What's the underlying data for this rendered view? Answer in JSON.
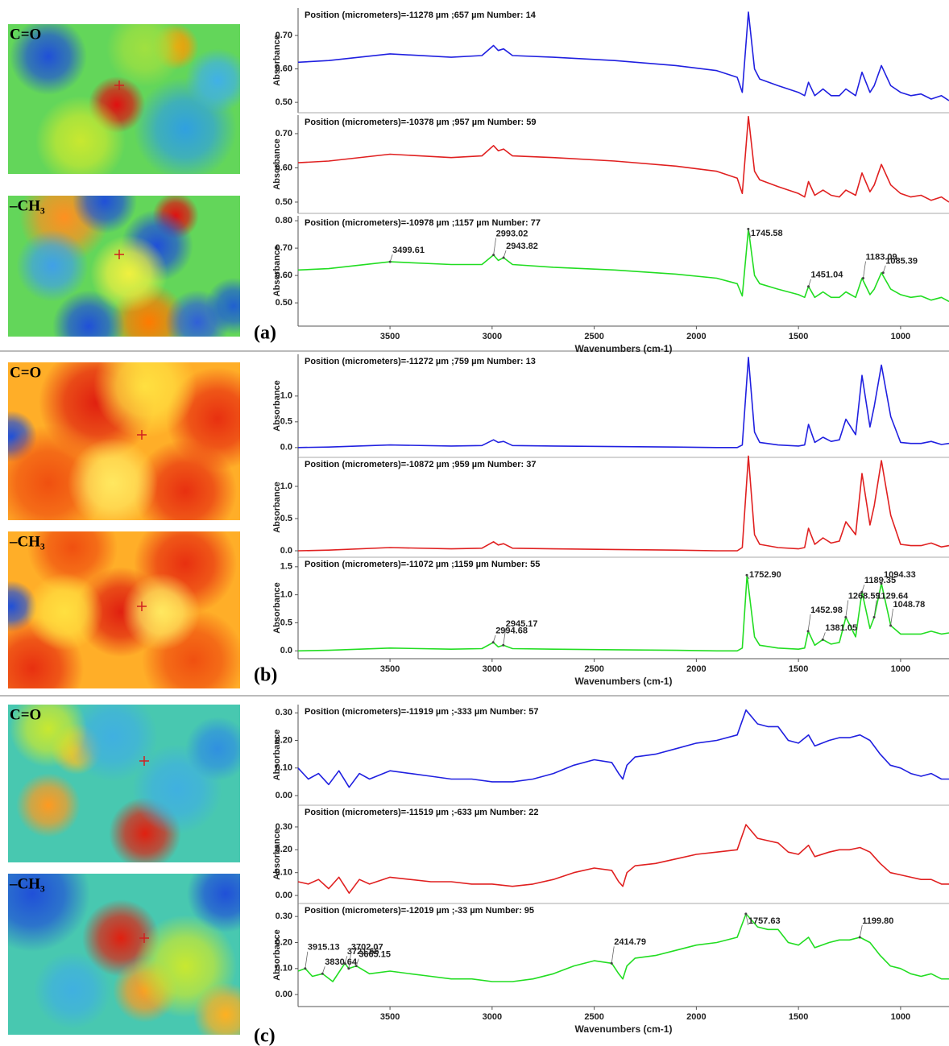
{
  "panels": [
    {
      "label": "(a)",
      "maps": [
        "C=O",
        "–CH₃"
      ]
    },
    {
      "label": "(b)",
      "maps": [
        "C=O",
        "–CH₃"
      ]
    },
    {
      "label": "(c)",
      "maps": [
        "C=O",
        "–CH₃"
      ]
    }
  ],
  "chart_data": [
    {
      "type": "line",
      "title": "Position (micrometers)=-11278 µm ;657 µm  Number: 14",
      "y_label": "Absorbance",
      "color": "#2020e0",
      "x": [
        3950,
        3800,
        3500,
        3200,
        3050,
        2993,
        2970,
        2944,
        2900,
        2700,
        2400,
        2100,
        1900,
        1800,
        1775,
        1745,
        1715,
        1690,
        1600,
        1500,
        1470,
        1451,
        1420,
        1380,
        1340,
        1300,
        1268,
        1220,
        1189,
        1150,
        1129,
        1094,
        1048,
        1000,
        950,
        900,
        850,
        800,
        763
      ],
      "values": [
        0.62,
        0.625,
        0.645,
        0.635,
        0.64,
        0.67,
        0.655,
        0.66,
        0.64,
        0.635,
        0.625,
        0.61,
        0.595,
        0.575,
        0.53,
        0.77,
        0.6,
        0.57,
        0.55,
        0.53,
        0.52,
        0.56,
        0.52,
        0.54,
        0.52,
        0.52,
        0.54,
        0.52,
        0.59,
        0.53,
        0.55,
        0.61,
        0.55,
        0.53,
        0.52,
        0.525,
        0.51,
        0.52,
        0.505
      ],
      "xlim": [
        3950,
        763
      ],
      "ylim": [
        0.469,
        0.782
      ],
      "yticks": [
        {
          "value": 0.5,
          "label": "0.50"
        },
        {
          "value": 0.6,
          "label": "0.60"
        },
        {
          "value": 0.7,
          "label": "0.70"
        }
      ]
    },
    {
      "type": "line",
      "title": "Position (micrometers)=-10378 µm ;957 µm  Number: 59",
      "y_label": "Absorbance",
      "color": "#e02020",
      "x": [
        3950,
        3800,
        3500,
        3200,
        3050,
        2993,
        2970,
        2944,
        2900,
        2700,
        2400,
        2100,
        1900,
        1800,
        1775,
        1745,
        1715,
        1690,
        1600,
        1500,
        1470,
        1451,
        1420,
        1380,
        1340,
        1300,
        1268,
        1220,
        1189,
        1150,
        1129,
        1094,
        1048,
        1000,
        950,
        900,
        850,
        800,
        763
      ],
      "values": [
        0.615,
        0.62,
        0.64,
        0.63,
        0.635,
        0.665,
        0.65,
        0.655,
        0.635,
        0.63,
        0.62,
        0.605,
        0.59,
        0.57,
        0.525,
        0.75,
        0.59,
        0.565,
        0.545,
        0.525,
        0.515,
        0.56,
        0.52,
        0.535,
        0.52,
        0.515,
        0.535,
        0.52,
        0.585,
        0.53,
        0.55,
        0.61,
        0.55,
        0.525,
        0.515,
        0.52,
        0.505,
        0.515,
        0.5
      ],
      "xlim": [
        3950,
        763
      ],
      "ylim": [
        0.467,
        0.754
      ],
      "yticks": [
        {
          "value": 0.5,
          "label": "0.50"
        },
        {
          "value": 0.6,
          "label": "0.60"
        },
        {
          "value": 0.7,
          "label": "0.70"
        }
      ]
    },
    {
      "type": "line",
      "title": "Position (micrometers)=-10978 µm ;1157 µm  Number: 77",
      "y_label": "Absorbance",
      "color": "#22dd22",
      "x": [
        3950,
        3800,
        3500,
        3200,
        3050,
        2993,
        2970,
        2944,
        2900,
        2700,
        2400,
        2100,
        1900,
        1800,
        1775,
        1745,
        1715,
        1690,
        1600,
        1500,
        1470,
        1451,
        1420,
        1380,
        1340,
        1300,
        1268,
        1220,
        1189,
        1150,
        1129,
        1094,
        1048,
        1000,
        950,
        900,
        850,
        800,
        763
      ],
      "values": [
        0.62,
        0.625,
        0.65,
        0.64,
        0.64,
        0.675,
        0.655,
        0.665,
        0.64,
        0.63,
        0.62,
        0.605,
        0.59,
        0.57,
        0.525,
        0.77,
        0.6,
        0.57,
        0.55,
        0.53,
        0.52,
        0.56,
        0.52,
        0.54,
        0.52,
        0.52,
        0.54,
        0.52,
        0.59,
        0.53,
        0.55,
        0.61,
        0.55,
        0.53,
        0.52,
        0.525,
        0.51,
        0.52,
        0.505
      ],
      "xlim": [
        3950,
        763
      ],
      "ylim": [
        0.415,
        0.818
      ],
      "yticks": [
        {
          "value": 0.5,
          "label": "0.50"
        },
        {
          "value": 0.6,
          "label": "0.60"
        },
        {
          "value": 0.7,
          "label": "0.70"
        },
        {
          "value": 0.8,
          "label": "0.80"
        }
      ],
      "xticks": [
        3500,
        3000,
        2500,
        2000,
        1500,
        1000
      ],
      "x_label": "Wavenumbers (cm-1)",
      "annotations": [
        {
          "label": "3499.61",
          "x": 3499.61,
          "y": 0.65
        },
        {
          "label": "2993.02",
          "x": 2993.02,
          "y": 0.675
        },
        {
          "label": "2943.82",
          "x": 2943.82,
          "y": 0.665
        },
        {
          "label": "1745.58",
          "x": 1745.58,
          "y": 0.77
        },
        {
          "label": "1451.04",
          "x": 1451.04,
          "y": 0.56
        },
        {
          "label": "1183.09",
          "x": 1183.09,
          "y": 0.59
        },
        {
          "label": "1085.39",
          "x": 1085.39,
          "y": 0.61
        }
      ]
    },
    {
      "type": "line",
      "title": "Position (micrometers)=-11272 µm ;759 µm  Number: 13",
      "y_label": "Absorbance",
      "color": "#2020e0",
      "x": [
        3950,
        3800,
        3500,
        3200,
        3050,
        2993,
        2970,
        2944,
        2900,
        2700,
        2400,
        2100,
        1900,
        1800,
        1775,
        1745,
        1715,
        1690,
        1600,
        1500,
        1470,
        1451,
        1420,
        1380,
        1340,
        1300,
        1268,
        1220,
        1189,
        1150,
        1129,
        1094,
        1048,
        1000,
        950,
        900,
        850,
        800,
        763
      ],
      "values": [
        0.0,
        0.01,
        0.05,
        0.03,
        0.04,
        0.15,
        0.1,
        0.12,
        0.04,
        0.03,
        0.02,
        0.01,
        0.0,
        0.0,
        0.05,
        1.75,
        0.3,
        0.1,
        0.05,
        0.03,
        0.05,
        0.45,
        0.1,
        0.2,
        0.12,
        0.15,
        0.55,
        0.25,
        1.4,
        0.4,
        0.8,
        1.6,
        0.6,
        0.1,
        0.08,
        0.08,
        0.12,
        0.06,
        0.08
      ],
      "xlim": [
        3950,
        763
      ],
      "ylim": [
        -0.19,
        1.81
      ],
      "yticks": [
        {
          "value": 0,
          "label": "0.0"
        },
        {
          "value": 0.5,
          "label": "0.5"
        },
        {
          "value": 1,
          "label": "1.0"
        }
      ]
    },
    {
      "type": "line",
      "title": "Position (micrometers)=-10872 µm ;959 µm  Number: 37",
      "y_label": "Absorbance",
      "color": "#e02020",
      "x": [
        3950,
        3800,
        3500,
        3200,
        3050,
        2993,
        2970,
        2944,
        2900,
        2700,
        2400,
        2100,
        1900,
        1800,
        1775,
        1745,
        1715,
        1690,
        1600,
        1500,
        1470,
        1451,
        1420,
        1380,
        1340,
        1300,
        1268,
        1220,
        1189,
        1150,
        1129,
        1094,
        1048,
        1000,
        950,
        900,
        850,
        800,
        763
      ],
      "values": [
        0.0,
        0.01,
        0.05,
        0.03,
        0.04,
        0.14,
        0.09,
        0.11,
        0.04,
        0.03,
        0.02,
        0.01,
        0.0,
        0.0,
        0.05,
        1.47,
        0.25,
        0.1,
        0.05,
        0.03,
        0.05,
        0.35,
        0.1,
        0.2,
        0.12,
        0.15,
        0.45,
        0.25,
        1.2,
        0.4,
        0.7,
        1.4,
        0.55,
        0.1,
        0.08,
        0.08,
        0.12,
        0.06,
        0.08
      ],
      "xlim": [
        3950,
        763
      ],
      "ylim": [
        -0.1,
        1.45
      ],
      "yticks": [
        {
          "value": 0,
          "label": "0.0"
        },
        {
          "value": 0.5,
          "label": "0.5"
        },
        {
          "value": 1,
          "label": "1.0"
        }
      ]
    },
    {
      "type": "line",
      "title": "Position (micrometers)=-11072 µm ;1159 µm  Number: 55",
      "y_label": "Absorbance",
      "color": "#22dd22",
      "x": [
        3950,
        3800,
        3500,
        3200,
        3050,
        2994,
        2970,
        2945,
        2900,
        2700,
        2400,
        2100,
        1900,
        1800,
        1775,
        1752,
        1715,
        1690,
        1600,
        1500,
        1470,
        1452,
        1420,
        1381,
        1340,
        1300,
        1268,
        1220,
        1189,
        1150,
        1129,
        1094,
        1048,
        1000,
        950,
        900,
        850,
        800,
        763
      ],
      "values": [
        0.0,
        0.01,
        0.05,
        0.03,
        0.04,
        0.15,
        0.07,
        0.1,
        0.04,
        0.03,
        0.02,
        0.01,
        0.0,
        0.0,
        0.05,
        1.35,
        0.25,
        0.1,
        0.05,
        0.03,
        0.05,
        0.35,
        0.1,
        0.2,
        0.12,
        0.15,
        0.6,
        0.25,
        1.05,
        0.4,
        0.6,
        1.2,
        0.45,
        0.3,
        0.3,
        0.3,
        0.35,
        0.3,
        0.32
      ],
      "xlim": [
        3950,
        763
      ],
      "ylim": [
        -0.14,
        1.67
      ],
      "yticks": [
        {
          "value": 0,
          "label": "0.0"
        },
        {
          "value": 0.5,
          "label": "0.5"
        },
        {
          "value": 1,
          "label": "1.0"
        },
        {
          "value": 1.5,
          "label": "1.5"
        }
      ],
      "xticks": [
        3500,
        3000,
        2500,
        2000,
        1500,
        1000
      ],
      "x_label": "Wavenumbers (cm-1)",
      "annotations": [
        {
          "label": "2994.68",
          "x": 2994.68,
          "y": 0.15
        },
        {
          "label": "2945.17",
          "x": 2945.17,
          "y": 0.1
        },
        {
          "label": "1752.90",
          "x": 1752.9,
          "y": 1.35
        },
        {
          "label": "1452.98",
          "x": 1452.98,
          "y": 0.35
        },
        {
          "label": "1381.05",
          "x": 1381.05,
          "y": 0.2
        },
        {
          "label": "1268.59",
          "x": 1268.59,
          "y": 0.6
        },
        {
          "label": "1189.35",
          "x": 1189.35,
          "y": 1.05
        },
        {
          "label": "1129.64",
          "x": 1129.64,
          "y": 0.6
        },
        {
          "label": "1094.33",
          "x": 1094.33,
          "y": 1.2
        },
        {
          "label": "1048.78",
          "x": 1048.78,
          "y": 0.45
        }
      ]
    },
    {
      "type": "line",
      "title": "Position (micrometers)=-11919 µm ;-333 µm  Number: 57",
      "y_label": "Absorbance",
      "color": "#2020e0",
      "x": [
        3950,
        3900,
        3850,
        3800,
        3750,
        3700,
        3650,
        3600,
        3500,
        3400,
        3300,
        3200,
        3100,
        3000,
        2900,
        2800,
        2700,
        2600,
        2500,
        2414,
        2380,
        2360,
        2340,
        2300,
        2200,
        2100,
        2000,
        1900,
        1800,
        1757,
        1700,
        1650,
        1600,
        1550,
        1500,
        1451,
        1420,
        1350,
        1300,
        1250,
        1199,
        1150,
        1100,
        1050,
        1000,
        950,
        900,
        850,
        800,
        763
      ],
      "values": [
        0.1,
        0.06,
        0.08,
        0.04,
        0.09,
        0.03,
        0.08,
        0.06,
        0.09,
        0.08,
        0.07,
        0.06,
        0.06,
        0.05,
        0.05,
        0.06,
        0.08,
        0.11,
        0.13,
        0.12,
        0.08,
        0.06,
        0.11,
        0.14,
        0.15,
        0.17,
        0.19,
        0.2,
        0.22,
        0.31,
        0.26,
        0.25,
        0.25,
        0.2,
        0.19,
        0.22,
        0.18,
        0.2,
        0.21,
        0.21,
        0.22,
        0.2,
        0.15,
        0.11,
        0.1,
        0.08,
        0.07,
        0.08,
        0.06,
        0.06
      ],
      "xlim": [
        3950,
        763
      ],
      "ylim": [
        -0.035,
        0.33
      ],
      "yticks": [
        {
          "value": 0,
          "label": "0.00"
        },
        {
          "value": 0.1,
          "label": "0.10"
        },
        {
          "value": 0.2,
          "label": "0.20"
        },
        {
          "value": 0.3,
          "label": "0.30"
        }
      ]
    },
    {
      "type": "line",
      "title": "Position (micrometers)=-11519 µm ;-633 µm  Number: 22",
      "y_label": "Absorbance",
      "color": "#e02020",
      "x": [
        3950,
        3900,
        3850,
        3800,
        3750,
        3700,
        3650,
        3600,
        3500,
        3400,
        3300,
        3200,
        3100,
        3000,
        2900,
        2800,
        2700,
        2600,
        2500,
        2414,
        2380,
        2360,
        2340,
        2300,
        2200,
        2100,
        2000,
        1900,
        1800,
        1757,
        1700,
        1650,
        1600,
        1550,
        1500,
        1451,
        1420,
        1350,
        1300,
        1250,
        1199,
        1150,
        1100,
        1050,
        1000,
        950,
        900,
        850,
        800,
        763
      ],
      "values": [
        0.06,
        0.05,
        0.07,
        0.03,
        0.08,
        0.01,
        0.07,
        0.05,
        0.08,
        0.07,
        0.06,
        0.06,
        0.05,
        0.05,
        0.04,
        0.05,
        0.07,
        0.1,
        0.12,
        0.11,
        0.06,
        0.04,
        0.1,
        0.13,
        0.14,
        0.16,
        0.18,
        0.19,
        0.2,
        0.31,
        0.25,
        0.24,
        0.23,
        0.19,
        0.18,
        0.22,
        0.17,
        0.19,
        0.2,
        0.2,
        0.21,
        0.19,
        0.14,
        0.1,
        0.09,
        0.08,
        0.07,
        0.07,
        0.05,
        0.05
      ],
      "xlim": [
        3950,
        763
      ],
      "ylim": [
        -0.035,
        0.395
      ],
      "yticks": [
        {
          "value": 0,
          "label": "0.00"
        },
        {
          "value": 0.1,
          "label": "0.10"
        },
        {
          "value": 0.2,
          "label": "0.20"
        },
        {
          "value": 0.3,
          "label": "0.30"
        }
      ]
    },
    {
      "type": "line",
      "title": "Position (micrometers)=-12019 µm ;-33 µm  Number: 95",
      "y_label": "Absorbance",
      "color": "#22dd22",
      "x": [
        3950,
        3915,
        3880,
        3830,
        3780,
        3721,
        3702,
        3665,
        3600,
        3500,
        3400,
        3300,
        3200,
        3100,
        3000,
        2900,
        2800,
        2700,
        2600,
        2500,
        2414,
        2380,
        2360,
        2340,
        2300,
        2200,
        2100,
        2000,
        1900,
        1800,
        1757,
        1700,
        1650,
        1600,
        1550,
        1500,
        1451,
        1420,
        1350,
        1300,
        1250,
        1199,
        1150,
        1100,
        1050,
        1000,
        950,
        900,
        850,
        800,
        763
      ],
      "values": [
        0.09,
        0.1,
        0.07,
        0.08,
        0.05,
        0.12,
        0.1,
        0.11,
        0.08,
        0.09,
        0.08,
        0.07,
        0.06,
        0.06,
        0.05,
        0.05,
        0.06,
        0.08,
        0.11,
        0.13,
        0.12,
        0.08,
        0.06,
        0.11,
        0.14,
        0.15,
        0.17,
        0.19,
        0.2,
        0.22,
        0.31,
        0.26,
        0.25,
        0.25,
        0.2,
        0.19,
        0.22,
        0.18,
        0.2,
        0.21,
        0.21,
        0.22,
        0.2,
        0.15,
        0.11,
        0.1,
        0.08,
        0.07,
        0.08,
        0.06,
        0.06
      ],
      "xlim": [
        3950,
        763
      ],
      "ylim": [
        -0.046,
        0.35
      ],
      "yticks": [
        {
          "value": 0,
          "label": "0.00"
        },
        {
          "value": 0.1,
          "label": "0.10"
        },
        {
          "value": 0.2,
          "label": "0.20"
        },
        {
          "value": 0.3,
          "label": "0.30"
        }
      ],
      "xticks": [
        3500,
        3000,
        2500,
        2000,
        1500,
        1000
      ],
      "x_label": "Wavenumbers (cm-1)",
      "annotations": [
        {
          "label": "3830.64",
          "x": 3830.64,
          "y": 0.08
        },
        {
          "label": "3915.13",
          "x": 3915.13,
          "y": 0.1
        },
        {
          "label": "3721.66",
          "x": 3721.66,
          "y": 0.12
        },
        {
          "label": "3702.07",
          "x": 3702.07,
          "y": 0.1
        },
        {
          "label": "3665.15",
          "x": 3665.15,
          "y": 0.11
        },
        {
          "label": "2414.79",
          "x": 2414.79,
          "y": 0.12
        },
        {
          "label": "1757.63",
          "x": 1757.63,
          "y": 0.31
        },
        {
          "label": "1199.80",
          "x": 1199.8,
          "y": 0.22
        }
      ]
    }
  ]
}
